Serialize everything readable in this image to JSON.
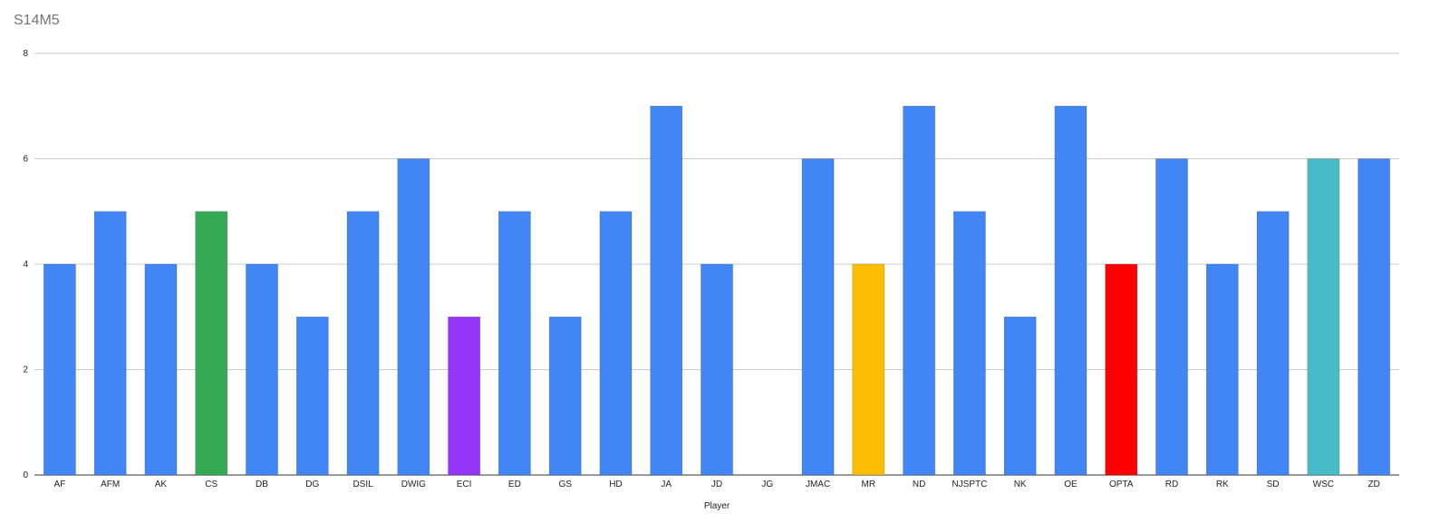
{
  "chart_data": {
    "type": "bar",
    "title": "S14M5",
    "xlabel": "Player",
    "ylabel": "",
    "ylim": [
      0,
      8
    ],
    "yticks": [
      0,
      2,
      4,
      6,
      8
    ],
    "grid": true,
    "legend": "none",
    "default_color": "#4285f4",
    "categories": [
      "AF",
      "AFM",
      "AK",
      "CS",
      "DB",
      "DG",
      "DSIL",
      "DWIG",
      "ECI",
      "ED",
      "GS",
      "HD",
      "JA",
      "JD",
      "JG",
      "JMAC",
      "MR",
      "ND",
      "NJSPTC",
      "NK",
      "OE",
      "OPTA",
      "RD",
      "RK",
      "SD",
      "WSC",
      "ZD"
    ],
    "values": [
      4,
      5,
      4,
      5,
      4,
      3,
      5,
      6,
      3,
      5,
      3,
      5,
      7,
      4,
      0,
      6,
      4,
      7,
      5,
      3,
      7,
      4,
      6,
      4,
      5,
      6,
      6
    ],
    "colors": [
      "#4285f4",
      "#4285f4",
      "#4285f4",
      "#34a853",
      "#4285f4",
      "#4285f4",
      "#4285f4",
      "#4285f4",
      "#9334f6",
      "#4285f4",
      "#4285f4",
      "#4285f4",
      "#4285f4",
      "#4285f4",
      "#4285f4",
      "#4285f4",
      "#fbbc04",
      "#4285f4",
      "#4285f4",
      "#4285f4",
      "#4285f4",
      "#ff0000",
      "#4285f4",
      "#4285f4",
      "#4285f4",
      "#46bdc6",
      "#4285f4"
    ]
  }
}
